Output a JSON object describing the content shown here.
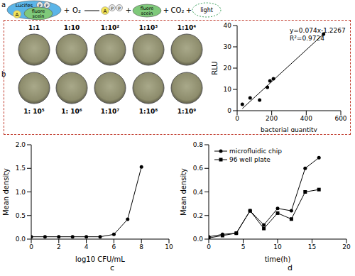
{
  "diagram": {
    "label": "a",
    "enzyme": "Lucifes",
    "adenosine": "A",
    "phosphate": "P",
    "substrate": [
      "fluore",
      "scein"
    ],
    "plus": "+",
    "oxygen": "O₂",
    "carbon_dioxide": "CO₂",
    "light": "light"
  },
  "dishes": {
    "label": "b",
    "top": [
      "1:1",
      "1:10",
      "1:10²",
      "1:10³",
      "1:10⁴"
    ],
    "bottom": [
      "1: 10⁵",
      "1: 10⁶",
      "1:10⁷",
      "1:10⁸",
      "1:10⁹"
    ]
  },
  "chart_data": [
    {
      "type": "scatter",
      "x_label": "bacterial quantity",
      "y_label": "RLU",
      "annotations": [
        "y=0.074x-1.2267",
        "R²=0.9724"
      ],
      "x": [
        30,
        75,
        130,
        175,
        190,
        210,
        500
      ],
      "values": [
        3,
        6,
        5,
        11,
        14,
        15,
        36
      ],
      "fit": {
        "x": [
          30,
          500
        ],
        "values": [
          1,
          36
        ]
      },
      "color": "#000000",
      "marker": "circle",
      "xlim": [
        0,
        600
      ],
      "xticks": [
        0,
        200,
        400,
        600
      ],
      "ylim": [
        0,
        40
      ],
      "yticks": [
        0,
        10,
        20,
        30,
        40
      ]
    },
    {
      "type": "line",
      "title": "c",
      "x_label": "log10 CFU/mL",
      "y_label": "Mean density",
      "x": [
        0,
        1,
        2,
        3,
        4,
        5,
        6,
        7,
        8
      ],
      "values": [
        0.05,
        0.05,
        0.05,
        0.05,
        0.05,
        0.05,
        0.1,
        0.42,
        1.53
      ],
      "color": "#000000",
      "marker": "circle",
      "xlim": [
        0,
        10
      ],
      "xticks": [
        0,
        2,
        4,
        6,
        8,
        10
      ],
      "ylim": [
        0,
        2
      ],
      "yticks": [
        {
          "value": 0,
          "label": "0.0"
        },
        0.5,
        {
          "value": 1,
          "label": "1.0"
        },
        1.5,
        {
          "value": 2,
          "label": "2.0"
        }
      ]
    },
    {
      "type": "line",
      "title": "d",
      "x_label": "time(h)",
      "y_label": "Mean density",
      "x": [
        0,
        2,
        4,
        6,
        8,
        10,
        12,
        14,
        16
      ],
      "series": [
        {
          "name": "microfluidic chip",
          "color": "#000000",
          "marker": "circle",
          "values": [
            0.02,
            0.04,
            0.05,
            0.24,
            0.12,
            0.26,
            0.24,
            0.6,
            0.69
          ]
        },
        {
          "name": "96 well plate",
          "color": "#000000",
          "marker": "square",
          "values": [
            0.01,
            0.03,
            0.05,
            0.24,
            0.09,
            0.22,
            0.17,
            0.4,
            0.42
          ]
        }
      ],
      "legend": "upper left",
      "xlim": [
        0,
        20
      ],
      "xticks": [
        0,
        5,
        10,
        15,
        20
      ],
      "ylim": [
        0,
        0.8
      ],
      "yticks": [
        {
          "value": 0,
          "label": "0.0"
        },
        0.2,
        0.4,
        0.6,
        0.8
      ]
    }
  ]
}
